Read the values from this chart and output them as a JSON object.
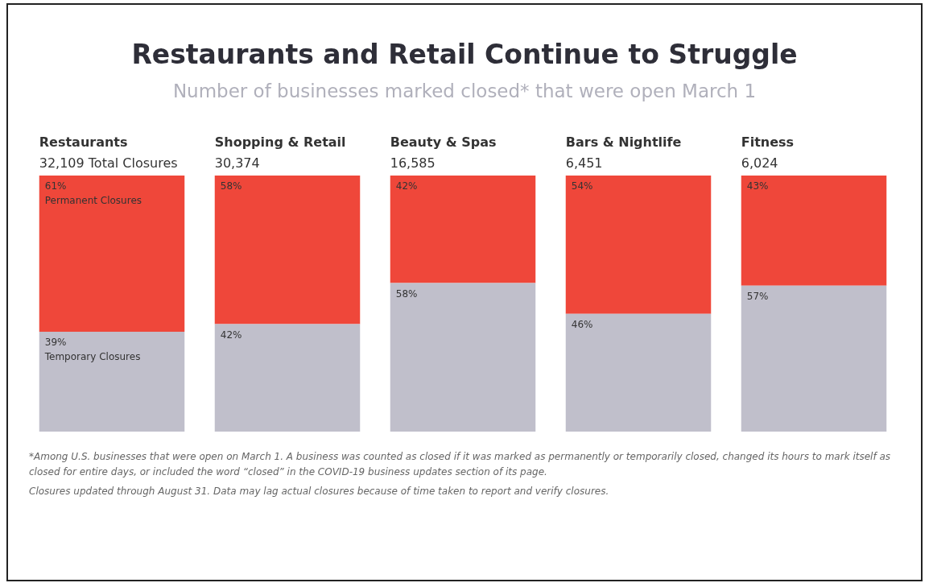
{
  "chart_data": {
    "type": "bar",
    "title": "Restaurants and Retail Continue to Struggle",
    "subtitle": "Number of businesses marked closed* that were open March 1",
    "categories": [
      "Restaurants",
      "Shopping & Retail",
      "Beauty & Spas",
      "Bars & Nightlife",
      "Fitness"
    ],
    "stacked": true,
    "legend": false,
    "tick_labels": false,
    "series": [
      {
        "name": "Temporary Closures",
        "color": "#c0bfcb",
        "values": [
          39,
          42,
          58,
          46,
          57
        ],
        "value_labels": [
          "39%",
          "42%",
          "58%",
          "46%",
          "57%"
        ]
      },
      {
        "name": "Permanent Closures",
        "color": "#ef473a",
        "values": [
          61,
          58,
          42,
          54,
          43
        ],
        "value_labels": [
          "61%",
          "58%",
          "42%",
          "54%",
          "43%"
        ]
      }
    ],
    "annotations": [
      {
        "text": "32,109 Total Closures",
        "x": "Restaurants",
        "y": 100
      },
      {
        "text": "30,374",
        "x": "Shopping & Retail",
        "y": 100
      },
      {
        "text": "16,585",
        "x": "Beauty & Spas",
        "y": 100
      },
      {
        "text": "6,451",
        "x": "Bars & Nightlife",
        "y": 100
      },
      {
        "text": "6,024",
        "x": "Fitness",
        "y": 100
      },
      "*Among U.S. businesses that were open on March 1. A business was counted as closed if it was marked as permanently or temporarily closed, changed its hours to mark itself as closed for entire days, or included the word “closed” in the COVID-19 business updates section of its page.",
      "Closures updated through August 31. Data may lag actual closures because of time taken to report and verify closures."
    ]
  }
}
